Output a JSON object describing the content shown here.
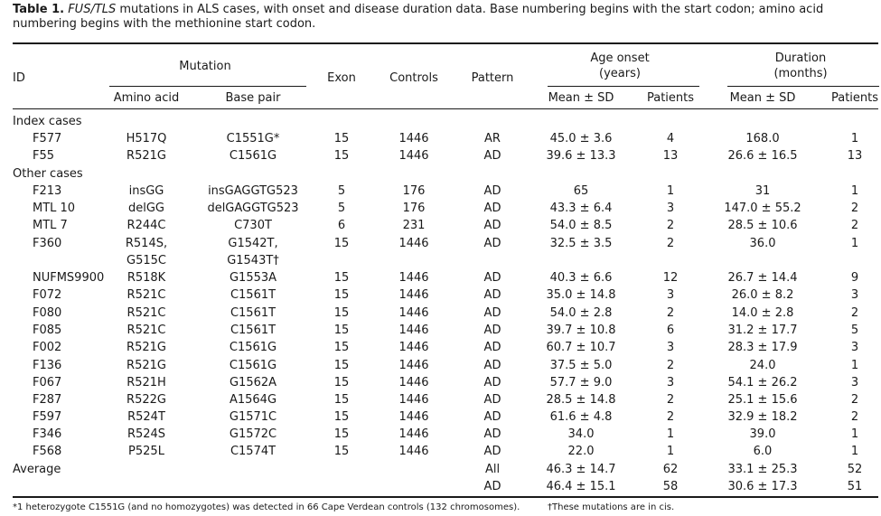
{
  "caption": {
    "label": "Table 1.",
    "italic": "FUS/TLS",
    "text": " mutations in ALS cases, with onset and disease duration data. Base numbering begins with the start codon; amino acid numbering begins with the methionine start codon."
  },
  "headers": {
    "id": "ID",
    "mutation": "Mutation",
    "amino_acid": "Amino acid",
    "base_pair": "Base pair",
    "exon": "Exon",
    "controls": "Controls",
    "pattern": "Pattern",
    "age_onset_1": "Age onset",
    "age_onset_2": "(years)",
    "duration_1": "Duration",
    "duration_2": "(months)",
    "mean_sd_age": "Mean ± SD",
    "patients_age": "Patients",
    "mean_sd_dur": "Mean ± SD",
    "patients_dur": "Patients"
  },
  "sections": {
    "index": "Index cases",
    "other": "Other cases",
    "average": "Average"
  },
  "rows": [
    {
      "id": "F577",
      "aa": "H517Q",
      "bp": "C1551G*",
      "exon": "15",
      "controls": "1446",
      "pattern": "AR",
      "age": "45.0 ± 3.6",
      "age_n": "4",
      "dur": "168.0",
      "dur_n": "1"
    },
    {
      "id": "F55",
      "aa": "R521G",
      "bp": "C1561G",
      "exon": "15",
      "controls": "1446",
      "pattern": "AD",
      "age": "39.6 ± 13.3",
      "age_n": "13",
      "dur": "26.6 ± 16.5",
      "dur_n": "13"
    },
    {
      "id": "F213",
      "aa": "insGG",
      "bp": "insGAGGTG523",
      "exon": "5",
      "controls": "176",
      "pattern": "AD",
      "age": "65",
      "age_n": "1",
      "dur": "31",
      "dur_n": "1"
    },
    {
      "id": "MTL 10",
      "aa": "delGG",
      "bp": "delGAGGTG523",
      "exon": "5",
      "controls": "176",
      "pattern": "AD",
      "age": "43.3 ± 6.4",
      "age_n": "3",
      "dur": "147.0 ± 55.2",
      "dur_n": "2"
    },
    {
      "id": "MTL 7",
      "aa": "R244C",
      "bp": "C730T",
      "exon": "6",
      "controls": "231",
      "pattern": "AD",
      "age": "54.0 ± 8.5",
      "age_n": "2",
      "dur": "28.5 ± 10.6",
      "dur_n": "2"
    },
    {
      "id": "F360",
      "aa": "R514S,",
      "bp": "G1542T,",
      "exon": "15",
      "controls": "1446",
      "pattern": "AD",
      "age": "32.5 ± 3.5",
      "age_n": "2",
      "dur": "36.0",
      "dur_n": "1"
    },
    {
      "id": "",
      "aa": "G515C",
      "bp": "G1543T†",
      "exon": "",
      "controls": "",
      "pattern": "",
      "age": "",
      "age_n": "",
      "dur": "",
      "dur_n": ""
    },
    {
      "id": "NUFMS9900",
      "aa": "R518K",
      "bp": "G1553A",
      "exon": "15",
      "controls": "1446",
      "pattern": "AD",
      "age": "40.3 ± 6.6",
      "age_n": "12",
      "dur": "26.7 ± 14.4",
      "dur_n": "9"
    },
    {
      "id": "F072",
      "aa": "R521C",
      "bp": "C1561T",
      "exon": "15",
      "controls": "1446",
      "pattern": "AD",
      "age": "35.0 ± 14.8",
      "age_n": "3",
      "dur": "26.0 ± 8.2",
      "dur_n": "3"
    },
    {
      "id": "F080",
      "aa": "R521C",
      "bp": "C1561T",
      "exon": "15",
      "controls": "1446",
      "pattern": "AD",
      "age": "54.0 ± 2.8",
      "age_n": "2",
      "dur": "14.0 ± 2.8",
      "dur_n": "2"
    },
    {
      "id": "F085",
      "aa": "R521C",
      "bp": "C1561T",
      "exon": "15",
      "controls": "1446",
      "pattern": "AD",
      "age": "39.7 ± 10.8",
      "age_n": "6",
      "dur": "31.2 ± 17.7",
      "dur_n": "5"
    },
    {
      "id": "F002",
      "aa": "R521G",
      "bp": "C1561G",
      "exon": "15",
      "controls": "1446",
      "pattern": "AD",
      "age": "60.7 ± 10.7",
      "age_n": "3",
      "dur": "28.3 ± 17.9",
      "dur_n": "3"
    },
    {
      "id": "F136",
      "aa": "R521G",
      "bp": "C1561G",
      "exon": "15",
      "controls": "1446",
      "pattern": "AD",
      "age": "37.5 ± 5.0",
      "age_n": "2",
      "dur": "24.0",
      "dur_n": "1"
    },
    {
      "id": "F067",
      "aa": "R521H",
      "bp": "G1562A",
      "exon": "15",
      "controls": "1446",
      "pattern": "AD",
      "age": "57.7 ± 9.0",
      "age_n": "3",
      "dur": "54.1 ± 26.2",
      "dur_n": "3"
    },
    {
      "id": "F287",
      "aa": "R522G",
      "bp": "A1564G",
      "exon": "15",
      "controls": "1446",
      "pattern": "AD",
      "age": "28.5 ± 14.8",
      "age_n": "2",
      "dur": "25.1 ± 15.6",
      "dur_n": "2"
    },
    {
      "id": "F597",
      "aa": "R524T",
      "bp": "G1571C",
      "exon": "15",
      "controls": "1446",
      "pattern": "AD",
      "age": "61.6 ± 4.8",
      "age_n": "2",
      "dur": "32.9 ± 18.2",
      "dur_n": "2"
    },
    {
      "id": "F346",
      "aa": "R524S",
      "bp": "G1572C",
      "exon": "15",
      "controls": "1446",
      "pattern": "AD",
      "age": "34.0",
      "age_n": "1",
      "dur": "39.0",
      "dur_n": "1"
    },
    {
      "id": "F568",
      "aa": "P525L",
      "bp": "C1574T",
      "exon": "15",
      "controls": "1446",
      "pattern": "AD",
      "age": "22.0",
      "age_n": "1",
      "dur": "6.0",
      "dur_n": "1"
    }
  ],
  "average_rows": [
    {
      "pattern": "All",
      "age": "46.3 ± 14.7",
      "age_n": "62",
      "dur": "33.1 ± 25.3",
      "dur_n": "52"
    },
    {
      "pattern": "AD",
      "age": "46.4 ± 15.1",
      "age_n": "58",
      "dur": "30.6 ± 17.3",
      "dur_n": "51"
    }
  ],
  "footnotes": {
    "star": "*1 heterozygote C1551G (and no homozygotes) was detected in 66 Cape Verdean controls (132 chromosomes).",
    "dagger": "†These mutations are in cis."
  }
}
